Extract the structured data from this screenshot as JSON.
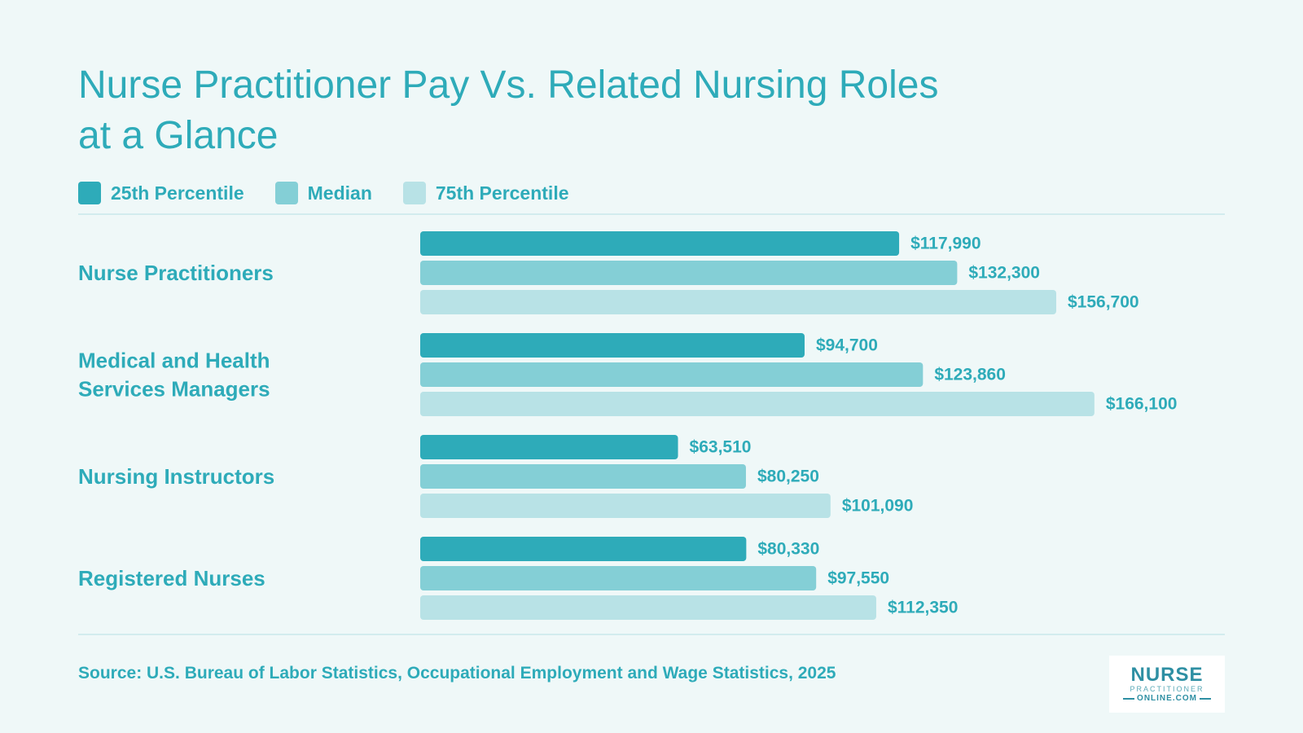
{
  "chart_data": {
    "type": "bar",
    "orientation": "horizontal",
    "title_lines": [
      "Nurse Practitioner Pay Vs. Related Nursing Roles",
      "at a Glance"
    ],
    "categories": [
      [
        "Nurse Practitioners"
      ],
      [
        "Medical and Health",
        "Services Managers"
      ],
      [
        "Nursing Instructors"
      ],
      [
        "Registered Nurses"
      ]
    ],
    "series": [
      {
        "name": "25th Percentile",
        "color": "#2eabb9",
        "values": [
          117990,
          94700,
          63510,
          80330
        ],
        "labels": [
          "$117,990",
          "$94,700",
          "$63,510",
          "$80,330"
        ]
      },
      {
        "name": "Median",
        "color": "#84cfd6",
        "values": [
          132300,
          123860,
          80250,
          97550
        ],
        "labels": [
          "$132,300",
          "$123,860",
          "$80,250",
          "$97,550"
        ]
      },
      {
        "name": "75th Percentile",
        "color": "#b8e2e6",
        "values": [
          156700,
          166100,
          101090,
          112350
        ],
        "labels": [
          "$156,700",
          "$166,100",
          "$101,090",
          "$112,350"
        ]
      }
    ],
    "legend_position": "top-left",
    "grid": false,
    "source": "Source: U.S. Bureau of Labor Statistics, Occupational Employment and Wage Statistics, 2025"
  },
  "logo": {
    "line1": "NURSE",
    "line2": "PRACTITIONER",
    "line3": "ONLINE.COM"
  }
}
